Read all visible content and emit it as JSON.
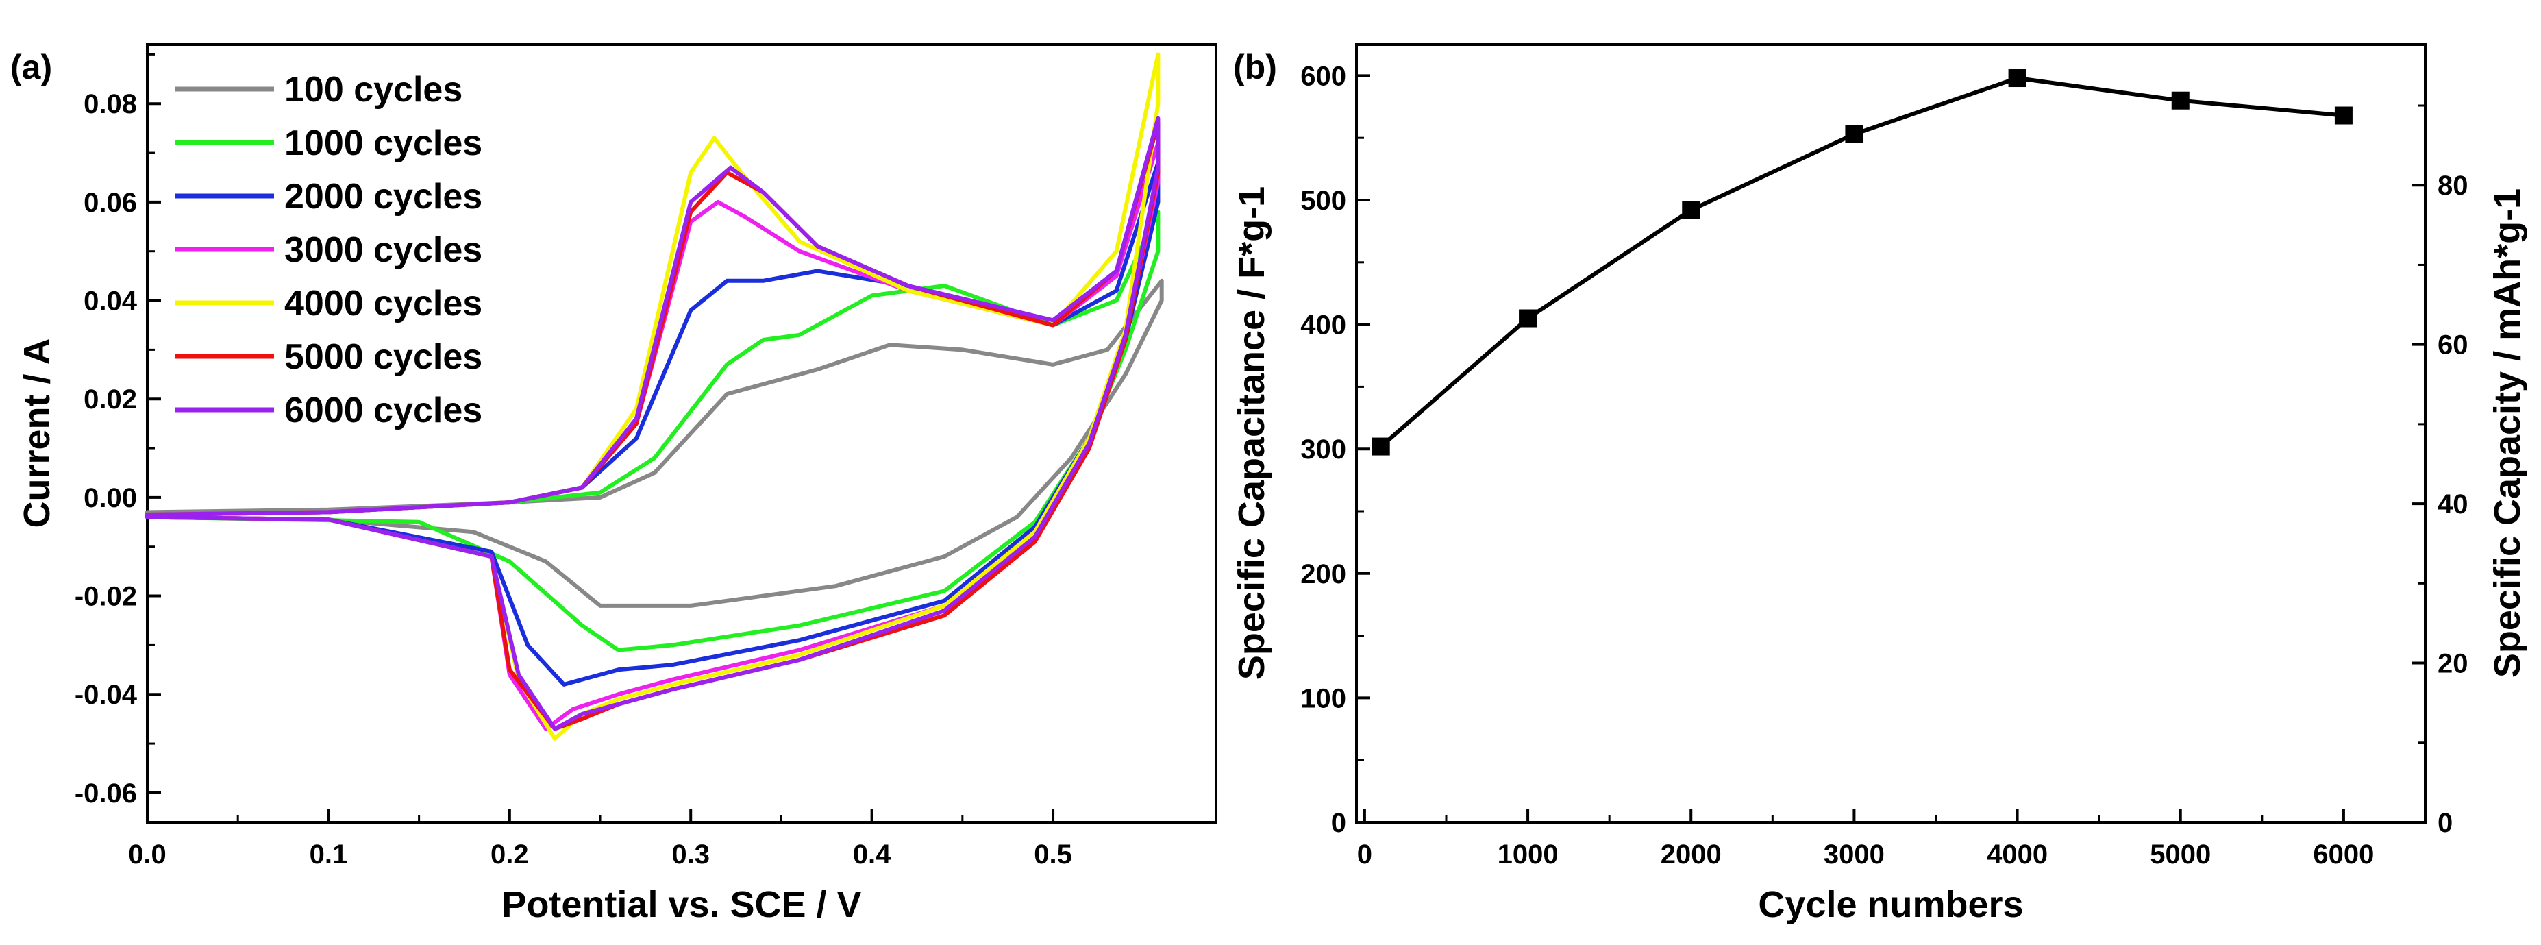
{
  "chart_data": [
    {
      "type": "line",
      "panel_label": "(a)",
      "title": "",
      "xlabel": "Potential vs. SCE / V",
      "ylabel": "Current / A",
      "xlim": [
        0.0,
        0.59
      ],
      "ylim": [
        -0.066,
        0.092
      ],
      "xticks": [
        "0.0",
        "0.1",
        "0.2",
        "0.3",
        "0.4",
        "0.5"
      ],
      "yticks": [
        "-0.06",
        "-0.04",
        "-0.02",
        "0.00",
        "0.02",
        "0.04",
        "0.06",
        "0.08"
      ],
      "legend_position": "top-left",
      "series": [
        {
          "name": "100 cycles",
          "color": "#888888",
          "x": [
            0.0,
            0.1,
            0.2,
            0.25,
            0.28,
            0.32,
            0.35,
            0.37,
            0.41,
            0.45,
            0.5,
            0.53,
            0.56,
            0.56,
            0.54,
            0.51,
            0.48,
            0.44,
            0.38,
            0.3,
            0.27,
            0.25,
            0.22,
            0.18,
            0.1,
            0.0
          ],
          "y": [
            -0.003,
            -0.0025,
            -0.001,
            0.0,
            0.005,
            0.021,
            0.024,
            0.026,
            0.031,
            0.03,
            0.027,
            0.03,
            0.044,
            0.04,
            0.025,
            0.008,
            -0.004,
            -0.012,
            -0.018,
            -0.022,
            -0.022,
            -0.022,
            -0.013,
            -0.007,
            -0.0045,
            -0.004
          ]
        },
        {
          "name": "1000 cycles",
          "color": "#22ee22",
          "x": [
            0.0,
            0.1,
            0.2,
            0.25,
            0.28,
            0.32,
            0.34,
            0.36,
            0.4,
            0.44,
            0.5,
            0.535,
            0.558,
            0.558,
            0.54,
            0.52,
            0.49,
            0.44,
            0.36,
            0.29,
            0.26,
            0.24,
            0.2,
            0.15,
            0.08,
            0.0
          ],
          "y": [
            -0.0035,
            -0.003,
            -0.001,
            0.001,
            0.008,
            0.027,
            0.032,
            0.033,
            0.041,
            0.043,
            0.035,
            0.04,
            0.058,
            0.05,
            0.03,
            0.012,
            -0.005,
            -0.019,
            -0.026,
            -0.03,
            -0.031,
            -0.026,
            -0.013,
            -0.005,
            -0.0045,
            -0.004
          ]
        },
        {
          "name": "2000 cycles",
          "color": "#1a2edc",
          "x": [
            0.0,
            0.1,
            0.2,
            0.24,
            0.27,
            0.3,
            0.32,
            0.34,
            0.37,
            0.42,
            0.5,
            0.535,
            0.558,
            0.558,
            0.54,
            0.52,
            0.49,
            0.44,
            0.36,
            0.29,
            0.26,
            0.23,
            0.21,
            0.19,
            0.1,
            0.0
          ],
          "y": [
            -0.0035,
            -0.003,
            -0.001,
            0.002,
            0.012,
            0.038,
            0.044,
            0.044,
            0.046,
            0.043,
            0.035,
            0.042,
            0.068,
            0.06,
            0.032,
            0.012,
            -0.006,
            -0.021,
            -0.029,
            -0.034,
            -0.035,
            -0.038,
            -0.03,
            -0.011,
            -0.0045,
            -0.004
          ]
        },
        {
          "name": "3000 cycles",
          "color": "#ee22ee",
          "x": [
            0.0,
            0.1,
            0.2,
            0.24,
            0.27,
            0.3,
            0.315,
            0.33,
            0.36,
            0.42,
            0.5,
            0.535,
            0.558,
            0.558,
            0.54,
            0.52,
            0.49,
            0.44,
            0.36,
            0.29,
            0.26,
            0.235,
            0.22,
            0.2,
            0.19,
            0.1,
            0.0
          ],
          "y": [
            -0.0035,
            -0.003,
            -0.001,
            0.002,
            0.015,
            0.056,
            0.06,
            0.057,
            0.05,
            0.042,
            0.035,
            0.045,
            0.072,
            0.064,
            0.033,
            0.012,
            -0.007,
            -0.022,
            -0.031,
            -0.037,
            -0.04,
            -0.043,
            -0.047,
            -0.036,
            -0.012,
            -0.0045,
            -0.004
          ]
        },
        {
          "name": "4000 cycles",
          "color": "#f5f500",
          "x": [
            0.0,
            0.1,
            0.2,
            0.24,
            0.27,
            0.3,
            0.313,
            0.33,
            0.36,
            0.42,
            0.5,
            0.535,
            0.558,
            0.558,
            0.54,
            0.52,
            0.49,
            0.44,
            0.36,
            0.29,
            0.26,
            0.24,
            0.225,
            0.205,
            0.19,
            0.1,
            0.0
          ],
          "y": [
            -0.0035,
            -0.003,
            -0.001,
            0.002,
            0.018,
            0.066,
            0.073,
            0.065,
            0.052,
            0.042,
            0.035,
            0.05,
            0.09,
            0.08,
            0.034,
            0.012,
            -0.007,
            -0.022,
            -0.032,
            -0.038,
            -0.041,
            -0.044,
            -0.049,
            -0.037,
            -0.012,
            -0.0045,
            -0.004
          ]
        },
        {
          "name": "5000 cycles",
          "color": "#ee1111",
          "x": [
            0.0,
            0.1,
            0.2,
            0.24,
            0.27,
            0.3,
            0.32,
            0.34,
            0.37,
            0.42,
            0.5,
            0.535,
            0.558,
            0.558,
            0.54,
            0.52,
            0.49,
            0.44,
            0.36,
            0.29,
            0.26,
            0.24,
            0.225,
            0.2,
            0.19,
            0.1,
            0.0
          ],
          "y": [
            -0.0035,
            -0.003,
            -0.001,
            0.002,
            0.015,
            0.058,
            0.066,
            0.062,
            0.051,
            0.043,
            0.035,
            0.046,
            0.076,
            0.066,
            0.032,
            0.01,
            -0.009,
            -0.024,
            -0.033,
            -0.039,
            -0.042,
            -0.045,
            -0.047,
            -0.035,
            -0.012,
            -0.0045,
            -0.004
          ]
        },
        {
          "name": "6000 cycles",
          "color": "#9a22ee",
          "x": [
            0.0,
            0.1,
            0.2,
            0.24,
            0.27,
            0.3,
            0.322,
            0.34,
            0.37,
            0.42,
            0.5,
            0.535,
            0.558,
            0.558,
            0.54,
            0.52,
            0.49,
            0.44,
            0.36,
            0.29,
            0.26,
            0.24,
            0.225,
            0.205,
            0.19,
            0.1,
            0.0
          ],
          "y": [
            -0.0035,
            -0.003,
            -0.001,
            0.002,
            0.016,
            0.06,
            0.067,
            0.062,
            0.051,
            0.043,
            0.036,
            0.046,
            0.077,
            0.067,
            0.033,
            0.011,
            -0.008,
            -0.023,
            -0.033,
            -0.039,
            -0.042,
            -0.044,
            -0.047,
            -0.036,
            -0.012,
            -0.0045,
            -0.004
          ]
        }
      ]
    },
    {
      "type": "line",
      "panel_label": "(b)",
      "title": "",
      "xlabel": "Cycle numbers",
      "ylabel": "Specific Capacitance / F*g-1",
      "y2label": "Specific Capacity / mAh*g-1",
      "xlim": [
        -50,
        6500
      ],
      "ylim": [
        0,
        625
      ],
      "y2lim": [
        0,
        97.66
      ],
      "xticks": [
        "0",
        "1000",
        "2000",
        "3000",
        "4000",
        "5000",
        "6000"
      ],
      "yticks": [
        "0",
        "100",
        "200",
        "300",
        "400",
        "500",
        "600"
      ],
      "y2ticks": [
        "0",
        "20",
        "40",
        "60",
        "80"
      ],
      "marker": "square",
      "color": "#000000",
      "series": [
        {
          "name": "Specific Capacitance",
          "x": [
            100,
            1000,
            2000,
            3000,
            4000,
            5000,
            6000
          ],
          "y": [
            302,
            405,
            492,
            553,
            598,
            580,
            568
          ]
        }
      ]
    }
  ]
}
